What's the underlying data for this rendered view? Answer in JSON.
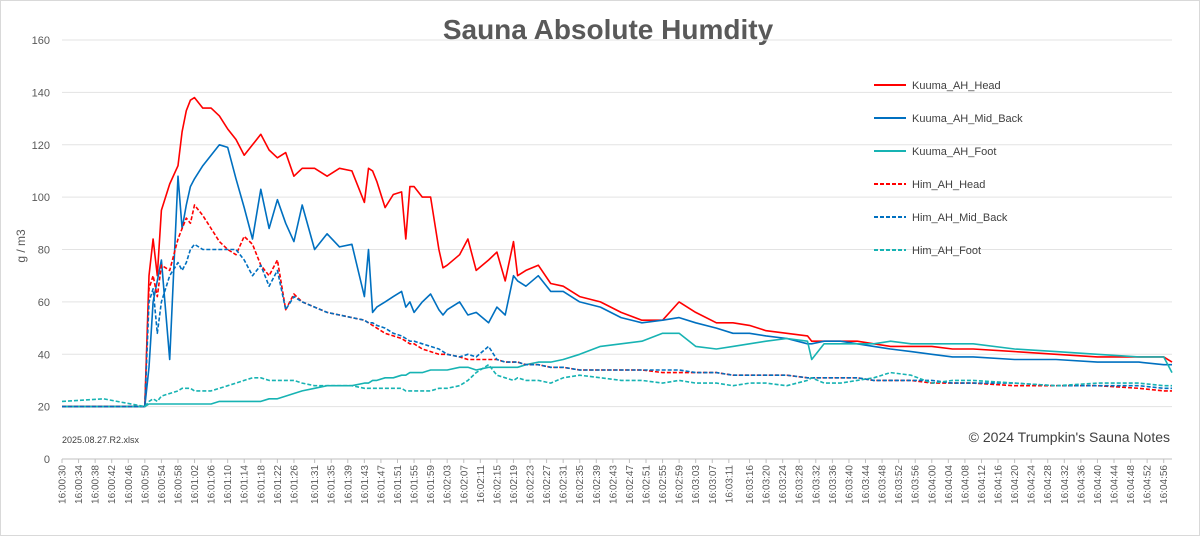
{
  "chart_data": {
    "type": "line",
    "title": "Sauna Absolute Humdity",
    "ylabel": "g / m3",
    "xlabel": "",
    "ylim": [
      0,
      160
    ],
    "yticks": [
      0,
      20,
      40,
      60,
      80,
      100,
      120,
      140,
      160
    ],
    "grid": true,
    "legend": "right",
    "x_start": "16:00:30",
    "x_end": "16:04:58",
    "x_tick_labels": [
      "16:00:30",
      "16:00:34",
      "16:00:38",
      "16:00:42",
      "16:00:46",
      "16:00:50",
      "16:00:54",
      "16:00:58",
      "16:01:02",
      "16:01:06",
      "16:01:10",
      "16:01:14",
      "16:01:18",
      "16:01:22",
      "16:01:26",
      "16:01:31",
      "16:01:35",
      "16:01:39",
      "16:01:43",
      "16:01:47",
      "16:01:51",
      "16:01:55",
      "16:01:59",
      "16:02:03",
      "16:02:07",
      "16:02:11",
      "16:02:15",
      "16:02:19",
      "16:02:23",
      "16:02:27",
      "16:02:31",
      "16:02:35",
      "16:02:39",
      "16:02:43",
      "16:02:47",
      "16:02:51",
      "16:02:55",
      "16:02:59",
      "16:03:03",
      "16:03:07",
      "16:03:11",
      "16:03:16",
      "16:03:20",
      "16:03:24",
      "16:03:28",
      "16:03:32",
      "16:03:36",
      "16:03:40",
      "16:03:44",
      "16:03:48",
      "16:03:52",
      "16:03:56",
      "16:04:00",
      "16:04:04",
      "16:04:08",
      "16:04:12",
      "16:04:16",
      "16:04:20",
      "16:04:24",
      "16:04:28",
      "16:04:32",
      "16:04:36",
      "16:04:40",
      "16:04:44",
      "16:04:48",
      "16:04:52",
      "16:04:56"
    ],
    "x": [
      "16:00:30",
      "16:00:40",
      "16:00:50",
      "16:00:51",
      "16:00:52",
      "16:00:53",
      "16:00:54",
      "16:00:56",
      "16:00:58",
      "16:00:59",
      "16:01:00",
      "16:01:01",
      "16:01:02",
      "16:01:04",
      "16:01:06",
      "16:01:08",
      "16:01:10",
      "16:01:12",
      "16:01:14",
      "16:01:16",
      "16:01:18",
      "16:01:20",
      "16:01:22",
      "16:01:24",
      "16:01:26",
      "16:01:28",
      "16:01:31",
      "16:01:34",
      "16:01:37",
      "16:01:40",
      "16:01:43",
      "16:01:44",
      "16:01:45",
      "16:01:46",
      "16:01:48",
      "16:01:50",
      "16:01:52",
      "16:01:53",
      "16:01:54",
      "16:01:55",
      "16:01:57",
      "16:01:59",
      "16:02:01",
      "16:02:02",
      "16:02:03",
      "16:02:06",
      "16:02:08",
      "16:02:10",
      "16:02:13",
      "16:02:15",
      "16:02:17",
      "16:02:19",
      "16:02:20",
      "16:02:22",
      "16:02:25",
      "16:02:28",
      "16:02:31",
      "16:02:35",
      "16:02:40",
      "16:02:45",
      "16:02:50",
      "16:02:55",
      "16:02:59",
      "16:03:03",
      "16:03:08",
      "16:03:12",
      "16:03:16",
      "16:03:20",
      "16:03:25",
      "16:03:30",
      "16:03:31",
      "16:03:34",
      "16:03:38",
      "16:03:42",
      "16:03:46",
      "16:03:50",
      "16:03:55",
      "16:04:00",
      "16:04:05",
      "16:04:10",
      "16:04:20",
      "16:04:30",
      "16:04:40",
      "16:04:50",
      "16:04:56",
      "16:04:58"
    ],
    "series": [
      {
        "name": "Kuuma_AH_Head",
        "color": "#ff0000",
        "dash": "solid",
        "values": [
          20,
          20,
          20,
          70,
          84,
          70,
          95,
          105,
          112,
          125,
          133,
          137,
          138,
          134,
          134,
          131,
          126,
          122,
          116,
          120,
          124,
          118,
          115,
          117,
          108,
          111,
          111,
          108,
          111,
          110,
          98,
          111,
          110,
          106,
          96,
          101,
          102,
          84,
          104,
          104,
          100,
          100,
          80,
          73,
          74,
          78,
          84,
          72,
          76,
          79,
          68,
          83,
          70,
          72,
          74,
          67,
          66,
          62,
          60,
          56,
          53,
          53,
          60,
          56,
          52,
          52,
          51,
          49,
          48,
          47,
          45,
          45,
          45,
          45,
          44,
          43,
          43,
          43,
          42,
          42,
          41,
          40,
          39,
          39,
          39,
          37
        ]
      },
      {
        "name": "Kuuma_AH_Mid_Back",
        "color": "#0070c0",
        "dash": "solid",
        "values": [
          20,
          20,
          20,
          35,
          60,
          68,
          76,
          38,
          108,
          88,
          97,
          104,
          107,
          112,
          116,
          120,
          119,
          107,
          96,
          84,
          103,
          88,
          99,
          90,
          83,
          97,
          80,
          86,
          81,
          82,
          62,
          80,
          56,
          58,
          60,
          62,
          64,
          58,
          60,
          56,
          60,
          63,
          57,
          55,
          57,
          60,
          55,
          56,
          52,
          58,
          55,
          70,
          68,
          66,
          70,
          64,
          64,
          60,
          58,
          54,
          52,
          53,
          54,
          52,
          50,
          48,
          48,
          47,
          46,
          44,
          44,
          45,
          45,
          44,
          43,
          42,
          41,
          40,
          39,
          39,
          38,
          38,
          37,
          37,
          36,
          36
        ]
      },
      {
        "name": "Kuuma_AH_Foot",
        "color": "#17b3b3",
        "dash": "solid",
        "values": [
          20,
          20,
          20,
          21,
          21,
          21,
          21,
          21,
          21,
          21,
          21,
          21,
          21,
          21,
          21,
          22,
          22,
          22,
          22,
          22,
          22,
          23,
          23,
          24,
          25,
          26,
          27,
          28,
          28,
          28,
          29,
          29,
          30,
          30,
          31,
          31,
          32,
          32,
          33,
          33,
          33,
          34,
          34,
          34,
          34,
          35,
          35,
          34,
          35,
          35,
          35,
          35,
          35,
          36,
          37,
          37,
          38,
          40,
          43,
          44,
          45,
          48,
          48,
          43,
          42,
          43,
          44,
          45,
          46,
          45,
          38,
          44,
          44,
          44,
          44,
          45,
          44,
          44,
          44,
          44,
          42,
          41,
          40,
          39,
          39,
          33
        ]
      },
      {
        "name": "Him_AH_Head",
        "color": "#ff0000",
        "dash": "dashed",
        "values": [
          20,
          20,
          20,
          65,
          70,
          62,
          74,
          72,
          84,
          88,
          92,
          90,
          97,
          93,
          88,
          83,
          80,
          78,
          85,
          82,
          74,
          70,
          76,
          57,
          63,
          60,
          58,
          56,
          55,
          54,
          53,
          52,
          51,
          50,
          48,
          47,
          46,
          45,
          44,
          44,
          42,
          41,
          40,
          40,
          40,
          39,
          38,
          38,
          38,
          38,
          37,
          37,
          37,
          36,
          36,
          35,
          35,
          34,
          34,
          34,
          34,
          33,
          33,
          33,
          33,
          32,
          32,
          32,
          32,
          31,
          31,
          31,
          31,
          31,
          30,
          30,
          30,
          29,
          29,
          29,
          28,
          28,
          28,
          27,
          26,
          26
        ]
      },
      {
        "name": "Him_AH_Mid_Back",
        "color": "#0070c0",
        "dash": "dashed",
        "values": [
          20,
          20,
          20,
          60,
          65,
          48,
          60,
          70,
          75,
          72,
          75,
          80,
          82,
          80,
          80,
          80,
          80,
          80,
          76,
          70,
          74,
          66,
          72,
          57,
          62,
          60,
          58,
          56,
          55,
          54,
          53,
          52,
          52,
          51,
          50,
          48,
          47,
          46,
          45,
          45,
          44,
          43,
          42,
          41,
          40,
          39,
          40,
          39,
          43,
          38,
          37,
          37,
          37,
          36,
          36,
          35,
          35,
          34,
          34,
          34,
          34,
          34,
          34,
          33,
          33,
          32,
          32,
          32,
          32,
          31,
          31,
          31,
          31,
          31,
          30,
          30,
          30,
          30,
          29,
          29,
          29,
          28,
          28,
          28,
          27,
          27
        ]
      },
      {
        "name": "Him_AH_Foot",
        "color": "#17b3b3",
        "dash": "dashed",
        "values": [
          22,
          23,
          20,
          22,
          23,
          22,
          24,
          25,
          26,
          27,
          27,
          27,
          26,
          26,
          26,
          27,
          28,
          29,
          30,
          31,
          31,
          30,
          30,
          30,
          30,
          29,
          28,
          28,
          28,
          28,
          27,
          27,
          27,
          27,
          27,
          27,
          27,
          26,
          26,
          26,
          26,
          26,
          27,
          27,
          27,
          28,
          30,
          33,
          36,
          32,
          31,
          30,
          31,
          30,
          30,
          29,
          31,
          32,
          31,
          30,
          30,
          29,
          30,
          29,
          29,
          28,
          29,
          29,
          28,
          30,
          31,
          29,
          29,
          30,
          31,
          33,
          32,
          29,
          30,
          30,
          29,
          28,
          29,
          29,
          28,
          28
        ]
      }
    ]
  },
  "footer": {
    "source_file": "2025.08.27.R2.xlsx",
    "copyright": "© 2024 Trumpkin's Sauna Notes"
  }
}
